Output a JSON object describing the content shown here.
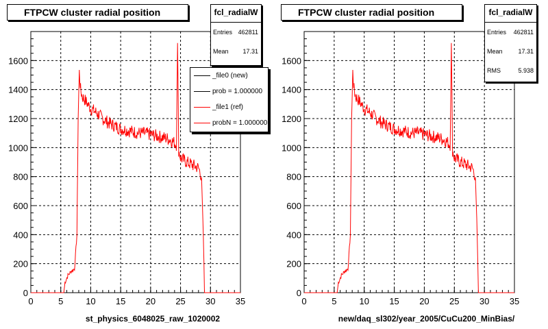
{
  "charts_style": {
    "line_color": "#ff0000",
    "frame_color": "#000000",
    "grid": "dashed"
  },
  "chart_data": [
    {
      "type": "line",
      "title": "FTPCW cluster radial position",
      "xlabel": "st_physics_6048025_raw_1020002",
      "ylabel": "",
      "xlim": [
        0,
        35
      ],
      "ylim": [
        0,
        1800
      ],
      "xticks": [
        "0",
        "5",
        "10",
        "15",
        "20",
        "25",
        "30",
        "35"
      ],
      "yticks": [
        "0",
        "200",
        "400",
        "600",
        "800",
        "1000",
        "1200",
        "1400",
        "1600"
      ],
      "grid": true,
      "series": [
        {
          "name": "_file0 (new)",
          "color": "#000000",
          "x": [],
          "y": []
        },
        {
          "name": "_file1 (ref)",
          "color": "#ff0000",
          "x": [
            0,
            5.5,
            5.7,
            6.2,
            6.8,
            7.3,
            7.7,
            7.9,
            8.1,
            8.3,
            8.6,
            9.0,
            9.5,
            10,
            11,
            12,
            13,
            14,
            15,
            16,
            17,
            18,
            19,
            20,
            21,
            22,
            23,
            23.8,
            24.3,
            24.5,
            24.7,
            25,
            26,
            27,
            28,
            28.5,
            28.8,
            29,
            29.3,
            35
          ],
          "y": [
            0,
            0,
            70,
            120,
            150,
            165,
            400,
            1200,
            1520,
            1400,
            1350,
            1330,
            1300,
            1270,
            1240,
            1200,
            1170,
            1150,
            1130,
            1120,
            1110,
            1100,
            1100,
            1090,
            1080,
            1070,
            1060,
            1040,
            1020,
            1700,
            980,
            930,
            900,
            880,
            860,
            800,
            400,
            0,
            0,
            0
          ]
        }
      ],
      "legend": {
        "placement": "top-right",
        "entries": [
          {
            "label": "_file0 (new)",
            "color": "#000000"
          },
          {
            "label": "prob = 1.000000",
            "color": "#000000"
          },
          {
            "label": "_file1 (ref)",
            "color": "#ff0000"
          },
          {
            "label": "probN = 1.000000",
            "color": "#ff0000"
          }
        ]
      },
      "stats": {
        "name": "fcl_radialW",
        "rows": [
          {
            "key": "Entries",
            "value": "462811"
          },
          {
            "key": "Mean",
            "value": "17.31"
          }
        ]
      }
    },
    {
      "type": "line",
      "title": "FTPCW cluster radial position",
      "xlabel": "new/daq_sl302/year_2005/CuCu200_MinBias/",
      "ylabel": "",
      "xlim": [
        0,
        35
      ],
      "ylim": [
        0,
        1800
      ],
      "xticks": [
        "0",
        "5",
        "10",
        "15",
        "20",
        "25",
        "30",
        "35"
      ],
      "yticks": [
        "0",
        "200",
        "400",
        "600",
        "800",
        "1000",
        "1200",
        "1400",
        "1600"
      ],
      "grid": true,
      "series": [
        {
          "name": "",
          "color": "#ff0000",
          "x": [
            0,
            5.5,
            5.7,
            6.2,
            6.8,
            7.3,
            7.7,
            7.9,
            8.1,
            8.3,
            8.6,
            9.0,
            9.5,
            10,
            11,
            12,
            13,
            14,
            15,
            16,
            17,
            18,
            19,
            20,
            21,
            22,
            23,
            23.8,
            24.3,
            24.5,
            24.7,
            25,
            26,
            27,
            28,
            28.5,
            28.8,
            29,
            29.3,
            35
          ],
          "y": [
            0,
            0,
            70,
            120,
            150,
            165,
            400,
            1200,
            1520,
            1400,
            1350,
            1330,
            1300,
            1270,
            1240,
            1200,
            1170,
            1150,
            1130,
            1120,
            1110,
            1100,
            1100,
            1090,
            1080,
            1070,
            1060,
            1040,
            1020,
            1700,
            980,
            930,
            900,
            880,
            860,
            800,
            400,
            0,
            0,
            0
          ]
        }
      ],
      "stats": {
        "name": "fcl_radialW",
        "rows": [
          {
            "key": "Entries",
            "value": "462811"
          },
          {
            "key": "Mean",
            "value": "17.31"
          },
          {
            "key": "RMS",
            "value": "5.938"
          }
        ]
      }
    }
  ]
}
